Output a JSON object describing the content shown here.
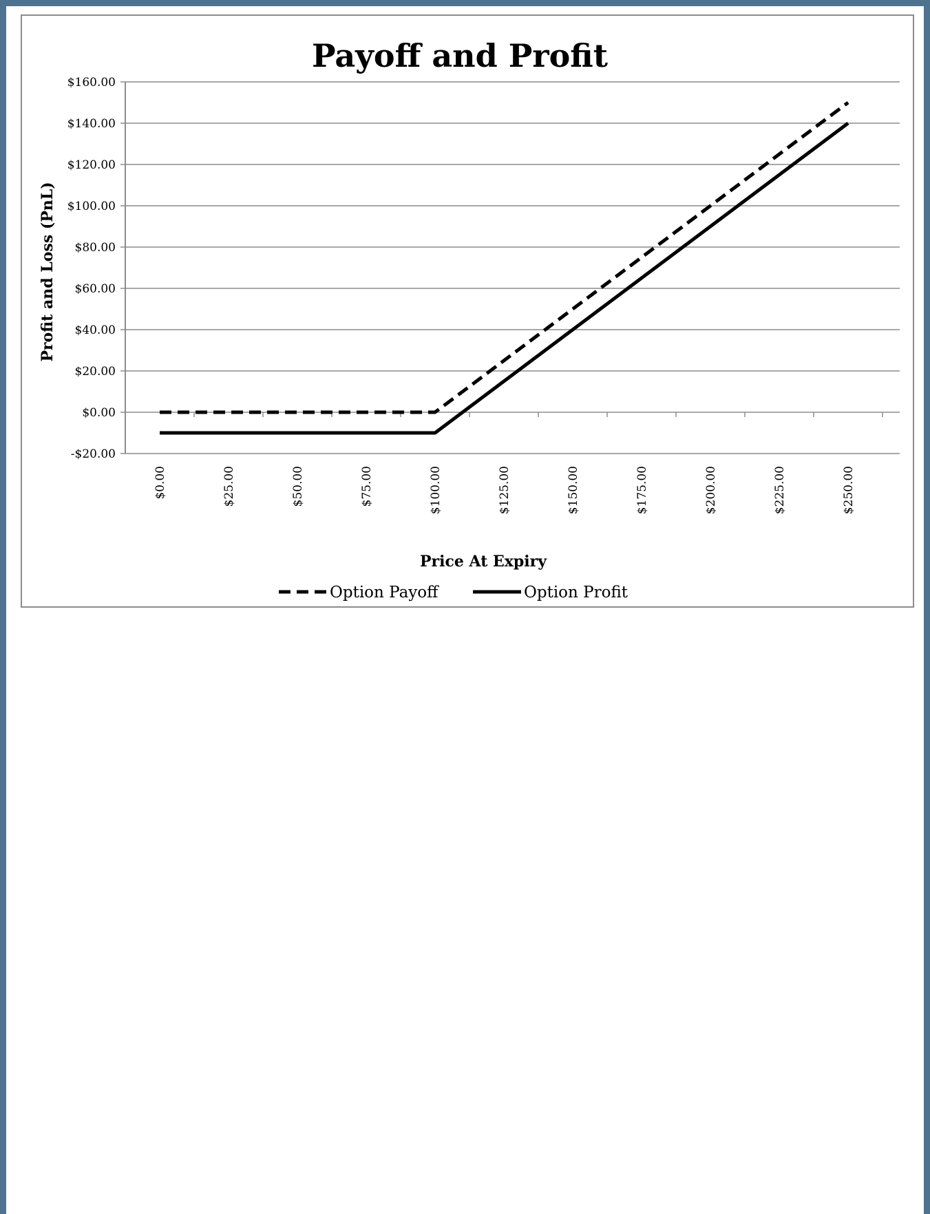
{
  "colors": {
    "frame": "#4d7390",
    "gridline": "#8c8c8c",
    "series": "#000000"
  },
  "chart_data": {
    "type": "line",
    "title": "Payoff and Profit",
    "xlabel": "Price At Expiry",
    "ylabel": "Profit and Loss (PnL)",
    "x": [
      0,
      25,
      50,
      75,
      100,
      125,
      150,
      175,
      200,
      225,
      250
    ],
    "x_tick_labels": [
      "$0.00",
      "$25.00",
      "$50.00",
      "$75.00",
      "$100.00",
      "$125.00",
      "$150.00",
      "$175.00",
      "$200.00",
      "$225.00",
      "$250.00"
    ],
    "ylim": [
      -20,
      160
    ],
    "y_ticks": [
      -20,
      0,
      20,
      40,
      60,
      80,
      100,
      120,
      140,
      160
    ],
    "y_tick_labels": [
      "-$20.00",
      "$0.00",
      "$20.00",
      "$40.00",
      "$60.00",
      "$80.00",
      "$100.00",
      "$120.00",
      "$140.00",
      "$160.00"
    ],
    "grid": true,
    "legend_position": "bottom",
    "series": [
      {
        "name": "Option Payoff",
        "style": "dashed",
        "values": [
          0,
          0,
          0,
          0,
          0,
          25,
          50,
          75,
          100,
          125,
          150
        ]
      },
      {
        "name": "Option Profit",
        "style": "solid",
        "values": [
          -10,
          -10,
          -10,
          -10,
          -10,
          15,
          40,
          65,
          90,
          115,
          140
        ]
      }
    ]
  }
}
